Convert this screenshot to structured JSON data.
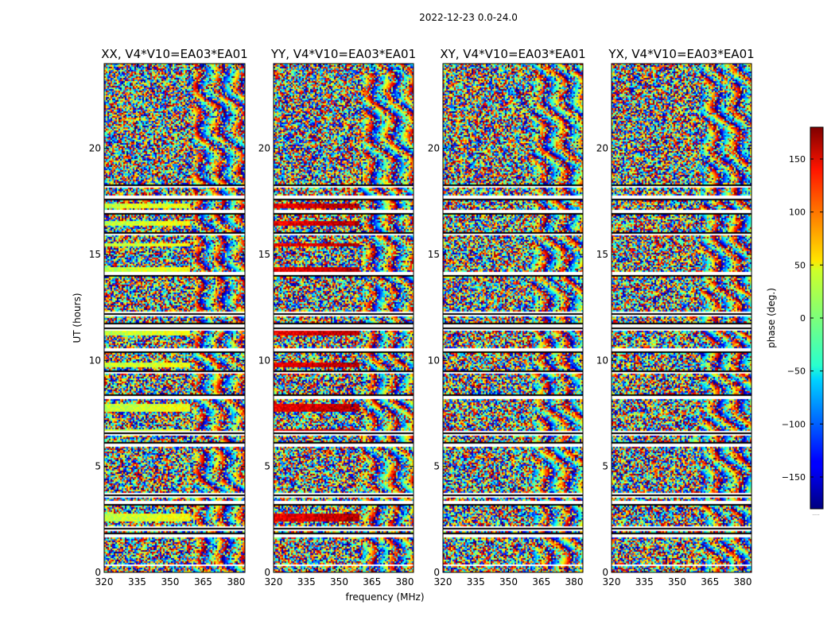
{
  "figure_title": "2022-12-23 0.0-24.0",
  "colorbar": {
    "label": "phase (deg.)",
    "ticks": [
      "150",
      "100",
      "50",
      "0",
      "−50",
      "−100",
      "−150"
    ],
    "tick_values": [
      150,
      100,
      50,
      0,
      -50,
      -100,
      -150
    ],
    "range": [
      -180,
      180
    ],
    "colormap": "jet",
    "bottom_mark": "....."
  },
  "chart_data": [
    {
      "type": "heatmap",
      "title": "XX, V4*V10=EA03*EA01",
      "xlabel": "frequency (MHz)",
      "ylabel": "UT (hours)",
      "xticks": [
        "320",
        "335",
        "350",
        "365",
        "380"
      ],
      "xtick_values": [
        320,
        335,
        350,
        365,
        380
      ],
      "yticks": [
        "0",
        "5",
        "10",
        "15",
        "20"
      ],
      "ytick_values": [
        0,
        5,
        10,
        15,
        20
      ],
      "xlim": [
        320,
        384
      ],
      "ylim": [
        0,
        24
      ],
      "value": "phase (deg.)",
      "base_phase_deg": 20
    },
    {
      "type": "heatmap",
      "title": "YY, V4*V10=EA03*EA01",
      "xlabel": "frequency (MHz)",
      "ylabel": "",
      "xticks": [
        "320",
        "335",
        "350",
        "365",
        "380"
      ],
      "xtick_values": [
        320,
        335,
        350,
        365,
        380
      ],
      "yticks": [
        "0",
        "5",
        "10",
        "15",
        "20"
      ],
      "ytick_values": [
        0,
        5,
        10,
        15,
        20
      ],
      "xlim": [
        320,
        384
      ],
      "ylim": [
        0,
        24
      ],
      "value": "phase (deg.)",
      "base_phase_deg": 140
    },
    {
      "type": "heatmap",
      "title": "XY, V4*V10=EA03*EA01",
      "xlabel": "",
      "ylabel": "",
      "xticks": [
        "320",
        "335",
        "350",
        "365",
        "380"
      ],
      "xtick_values": [
        320,
        335,
        350,
        365,
        380
      ],
      "yticks": [
        "0",
        "5",
        "10",
        "15",
        "20"
      ],
      "ytick_values": [
        0,
        5,
        10,
        15,
        20
      ],
      "xlim": [
        320,
        384
      ],
      "ylim": [
        0,
        24
      ],
      "value": "phase (deg.)",
      "base_phase_deg": null
    },
    {
      "type": "heatmap",
      "title": "YX, V4*V10=EA03*EA01",
      "xlabel": "",
      "ylabel": "",
      "xticks": [
        "320",
        "335",
        "350",
        "365",
        "380"
      ],
      "xtick_values": [
        320,
        335,
        350,
        365,
        380
      ],
      "yticks": [
        "0",
        "5",
        "10",
        "15",
        "20"
      ],
      "ytick_values": [
        0,
        5,
        10,
        15,
        20
      ],
      "xlim": [
        320,
        384
      ],
      "ylim": [
        0,
        24
      ],
      "value": "phase (deg.)",
      "base_phase_deg": null
    }
  ],
  "flagged_ut_bands_hours": [
    [
      18.2,
      18.3
    ],
    [
      17.6,
      17.8
    ],
    [
      16.9,
      17.1
    ],
    [
      15.9,
      16.1
    ],
    [
      14.0,
      14.2
    ],
    [
      12.1,
      12.3
    ],
    [
      11.4,
      11.8
    ],
    [
      10.4,
      10.6
    ],
    [
      9.4,
      9.6
    ],
    [
      8.2,
      8.4
    ],
    [
      6.5,
      6.7
    ],
    [
      6.0,
      6.2
    ],
    [
      3.6,
      3.8
    ],
    [
      3.2,
      3.4
    ],
    [
      2.0,
      2.2
    ],
    [
      1.7,
      1.9
    ],
    [
      0.3,
      0.4
    ]
  ],
  "smooth_rows_ut_hours": [
    [
      17.2,
      17.4
    ],
    [
      16.4,
      16.6
    ],
    [
      15.4,
      15.6
    ],
    [
      14.2,
      14.4
    ],
    [
      11.2,
      11.4
    ],
    [
      9.7,
      9.9
    ],
    [
      7.6,
      8.0
    ],
    [
      6.5,
      6.8
    ],
    [
      2.4,
      2.8
    ]
  ],
  "smooth_columns_max_mhz": 359
}
